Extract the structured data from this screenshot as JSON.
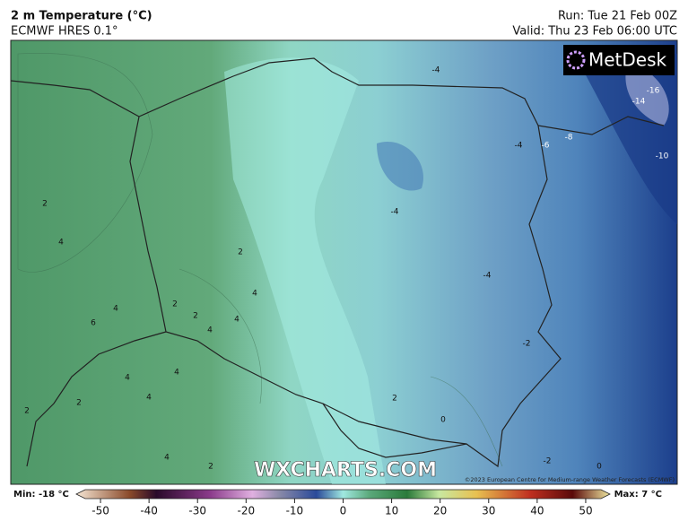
{
  "header": {
    "title": "2 m Temperature (°C)",
    "model": "ECMWF HRES 0.1°",
    "run": "Run: Tue 21 Feb 00Z",
    "valid": "Valid: Thu 23 Feb 06:00 UTC"
  },
  "logo": "MetDesk",
  "watermark": "WXCHARTS.COM",
  "copyright": "©2023 European Centre for Medium-range Weather Forecasts (ECMWF)",
  "colorbar": {
    "min_label": "Min: -18 °C",
    "max_label": "Max: 7 °C",
    "range": [
      -55,
      55
    ],
    "ticks": [
      -50,
      -40,
      -30,
      -20,
      -10,
      0,
      10,
      20,
      30,
      40,
      50
    ]
  },
  "contour_labels": [
    -4,
    -4,
    -6,
    -8,
    -10,
    -16,
    -14,
    -4,
    -4,
    -2,
    2,
    4,
    4,
    6,
    2,
    2,
    4,
    4,
    4,
    2,
    2,
    2,
    2,
    4,
    4,
    0,
    0,
    -2,
    2,
    4,
    4
  ]
}
